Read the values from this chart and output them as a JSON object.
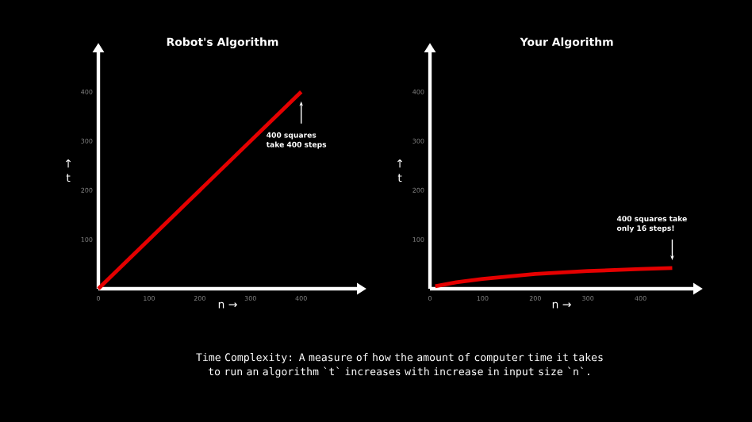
{
  "chart_data": [
    {
      "type": "line",
      "title": "Robot's Algorithm",
      "xlabel": "n →",
      "ylabel": "↑ t",
      "xlim": [
        0,
        510
      ],
      "ylim": [
        0,
        480
      ],
      "xticks": [
        0,
        100,
        200,
        300,
        400
      ],
      "yticks": [
        100,
        200,
        300,
        400
      ],
      "grid": false,
      "series": [
        {
          "color": "#e50000",
          "x": [
            0,
            400
          ],
          "values": [
            0,
            400
          ]
        }
      ],
      "annotations": [
        {
          "text": "400 squares take 400 steps",
          "x": 400,
          "y": 400
        }
      ]
    },
    {
      "type": "line",
      "title": "Your Algorithm",
      "xlabel": "n →",
      "ylabel": "↑ t",
      "xlim": [
        0,
        500
      ],
      "ylim": [
        0,
        480
      ],
      "xticks": [
        0,
        100,
        200,
        300,
        400
      ],
      "yticks": [
        100,
        200,
        300,
        400
      ],
      "grid": false,
      "series": [
        {
          "color": "#e50000",
          "x": [
            10,
            50,
            100,
            200,
            300,
            400,
            460
          ],
          "values": [
            5,
            13,
            20,
            30,
            36,
            40,
            42
          ]
        }
      ],
      "annotations": [
        {
          "text": "400 squares take only 16 steps!",
          "x": 460,
          "y": 42
        },
        "Time Complexity: A measure of how the amount of computer time it takes to run an algorithm `t` increases with increase in input size `n`."
      ]
    }
  ]
}
